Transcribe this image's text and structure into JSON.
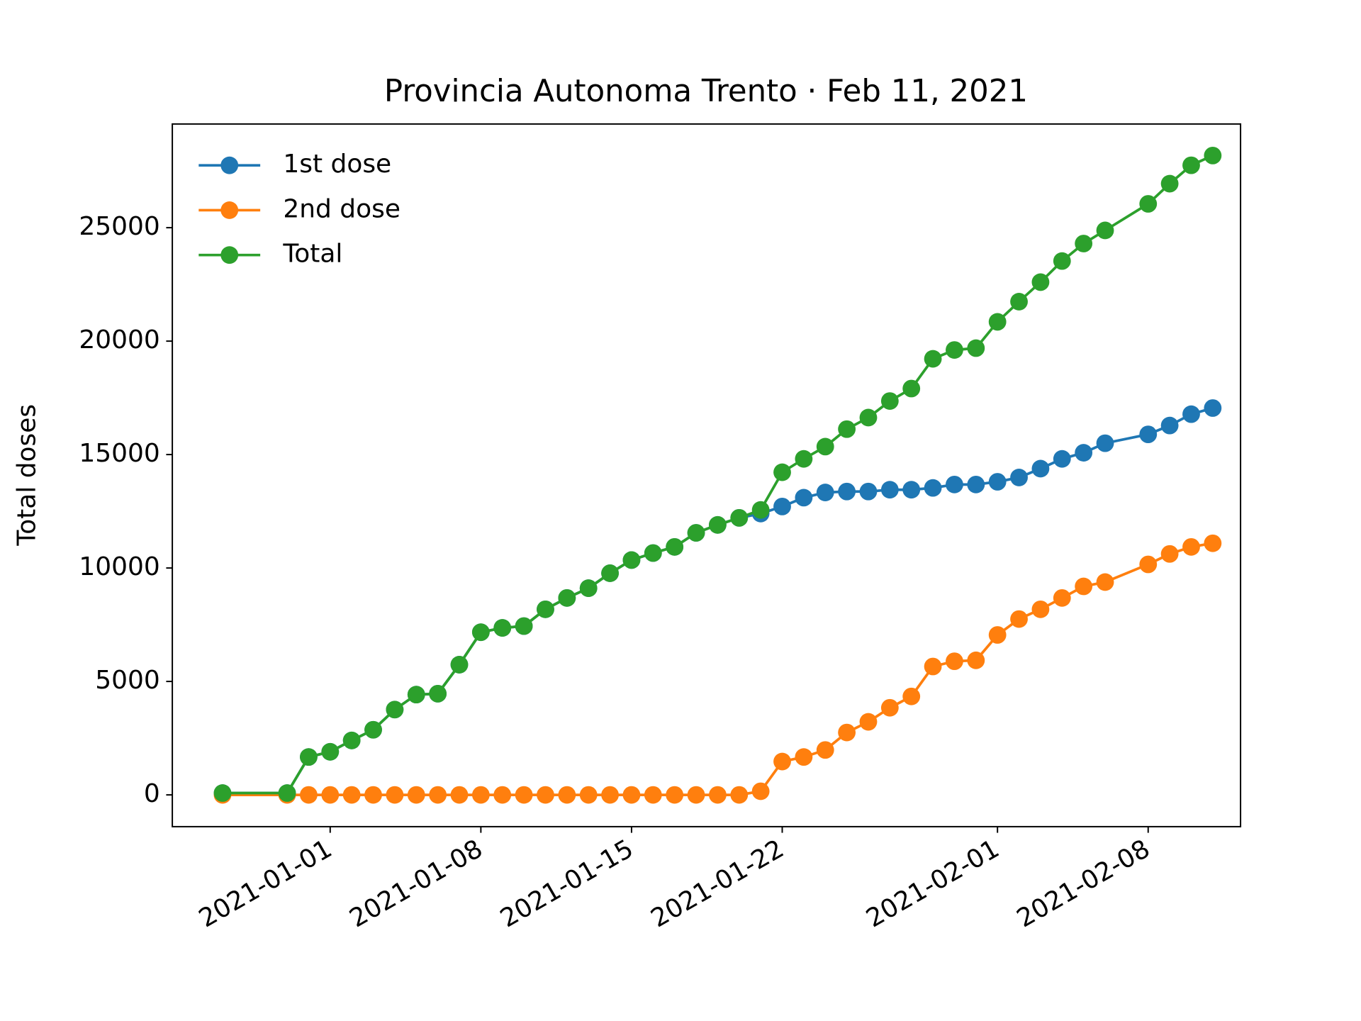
{
  "chart_data": {
    "type": "line",
    "title": "Provincia Autonoma Trento · Feb 11, 2021",
    "ylabel": "Total doses",
    "x": [
      "2020-12-27",
      "2020-12-30",
      "2020-12-31",
      "2021-01-01",
      "2021-01-02",
      "2021-01-03",
      "2021-01-04",
      "2021-01-05",
      "2021-01-06",
      "2021-01-07",
      "2021-01-08",
      "2021-01-09",
      "2021-01-10",
      "2021-01-11",
      "2021-01-12",
      "2021-01-13",
      "2021-01-14",
      "2021-01-15",
      "2021-01-16",
      "2021-01-17",
      "2021-01-18",
      "2021-01-19",
      "2021-01-20",
      "2021-01-21",
      "2021-01-22",
      "2021-01-23",
      "2021-01-24",
      "2021-01-25",
      "2021-01-26",
      "2021-01-27",
      "2021-01-28",
      "2021-01-29",
      "2021-01-30",
      "2021-01-31",
      "2021-02-01",
      "2021-02-02",
      "2021-02-03",
      "2021-02-04",
      "2021-02-05",
      "2021-02-06",
      "2021-02-08",
      "2021-02-09",
      "2021-02-10",
      "2021-02-11"
    ],
    "series": [
      {
        "name": "1st dose",
        "color": "#1f77b4",
        "values": [
          80,
          80,
          1670,
          1900,
          2400,
          2870,
          3760,
          4420,
          4460,
          5740,
          7170,
          7360,
          7440,
          8180,
          8680,
          9110,
          9770,
          10350,
          10660,
          10930,
          11550,
          11900,
          12210,
          12400,
          12710,
          13100,
          13330,
          13370,
          13370,
          13450,
          13450,
          13530,
          13680,
          13680,
          13800,
          13990,
          14380,
          14810,
          15080,
          15500,
          15890,
          16280,
          16780,
          17050
        ]
      },
      {
        "name": "2nd dose",
        "color": "#ff7f0e",
        "values": [
          0,
          0,
          0,
          0,
          0,
          0,
          0,
          0,
          0,
          0,
          0,
          0,
          0,
          0,
          0,
          0,
          0,
          0,
          0,
          0,
          0,
          0,
          0,
          160,
          1470,
          1670,
          1980,
          2750,
          3220,
          3840,
          4340,
          5660,
          5890,
          5930,
          7050,
          7750,
          8180,
          8680,
          9190,
          9380,
          10160,
          10620,
          10930,
          11090
        ]
      },
      {
        "name": "Total",
        "color": "#2ca02c",
        "values": [
          80,
          80,
          1670,
          1900,
          2400,
          2870,
          3760,
          4420,
          4460,
          5740,
          7170,
          7360,
          7440,
          8180,
          8680,
          9110,
          9770,
          10350,
          10660,
          10930,
          11550,
          11900,
          12210,
          12560,
          14220,
          14810,
          15350,
          16120,
          16630,
          17360,
          17910,
          19220,
          19610,
          19690,
          20850,
          21740,
          22600,
          23530,
          24300,
          24880,
          26050,
          26940,
          27750,
          28180
        ]
      }
    ],
    "xlim": [
      "2020-12-24T16:00",
      "2021-02-12T07:00"
    ],
    "xticks": [
      "2021-01-01",
      "2021-01-08",
      "2021-01-15",
      "2021-01-22",
      "2021-02-01",
      "2021-02-08"
    ],
    "ylim": [
      -1400,
      29570
    ],
    "yticks": [
      0,
      5000,
      10000,
      15000,
      20000,
      25000
    ],
    "legend": "upper left"
  }
}
